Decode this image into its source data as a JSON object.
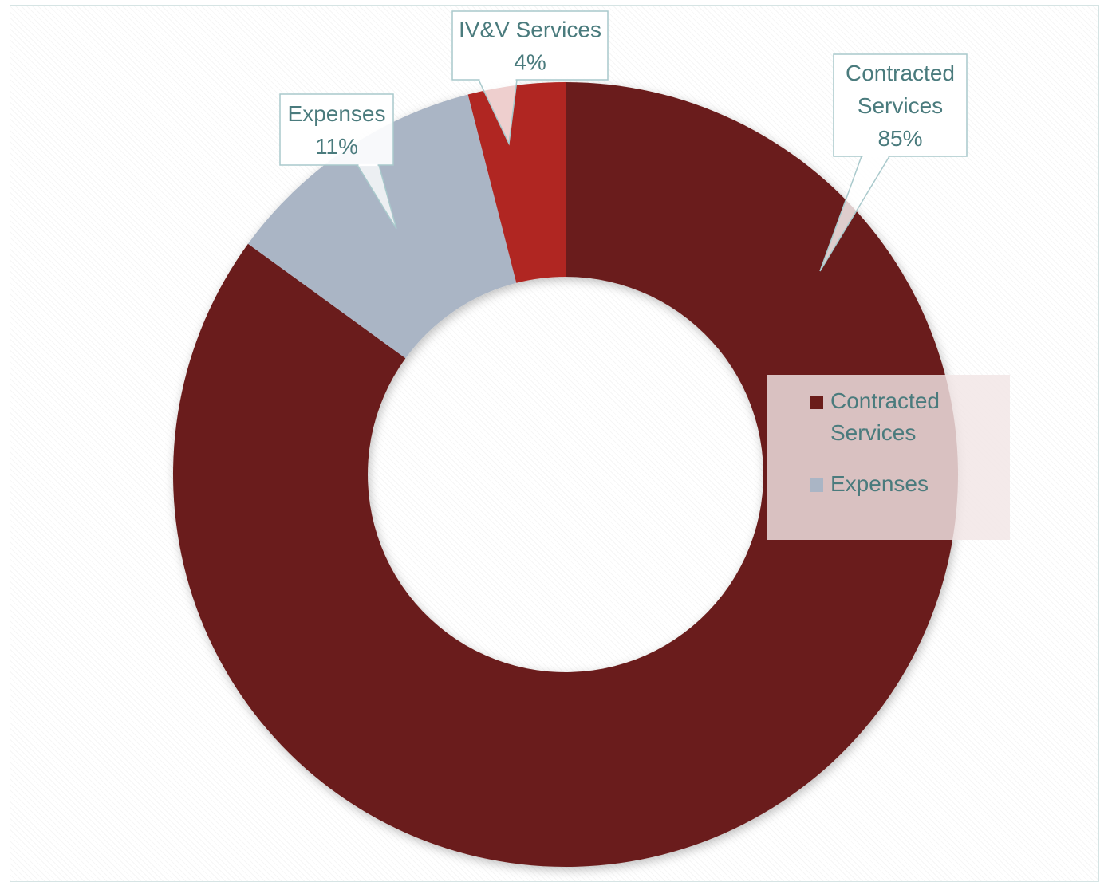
{
  "chart_data": {
    "type": "pie",
    "variant": "doughnut",
    "slices": [
      {
        "label": "Contracted Services",
        "value": 85,
        "display": "85%",
        "color": "#6b1d1a",
        "label_lines": [
          "Contracted",
          "Services",
          "85%"
        ]
      },
      {
        "label": "Expenses",
        "value": 11,
        "display": "11%",
        "color": "#aab5c5",
        "label_lines": [
          "Expenses",
          "11%"
        ]
      },
      {
        "label": "IV&V Services",
        "value": 4,
        "display": "4%",
        "color": "#b02620",
        "label_lines": [
          "IV&V Services",
          "4%"
        ]
      }
    ],
    "legend": {
      "placement": "right",
      "entries": [
        {
          "label_lines": [
            "Contracted",
            "Services"
          ],
          "color": "#6b1d1a"
        },
        {
          "label_lines": [
            "Expenses"
          ],
          "color": "#aab5c5"
        }
      ]
    },
    "colors": {
      "label_text": "#4a7b7d",
      "callout_border": "#a9c9cc"
    }
  }
}
